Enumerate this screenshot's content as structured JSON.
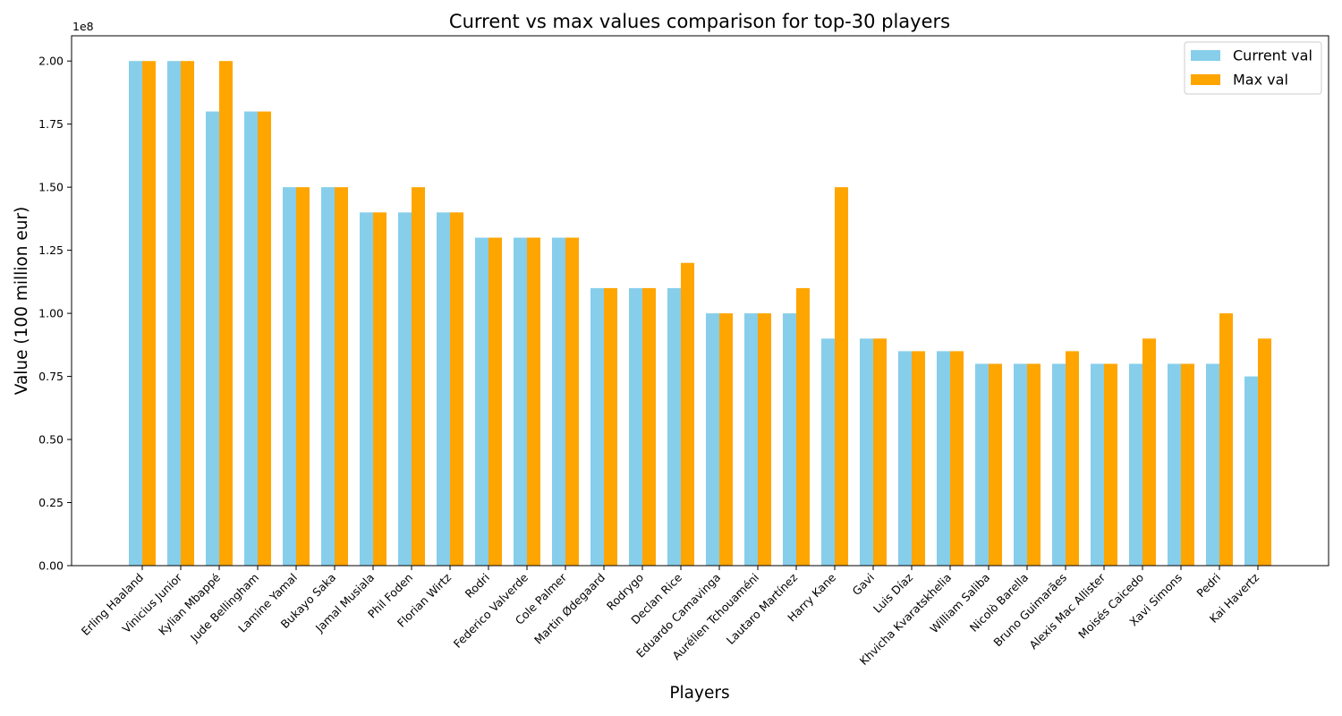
{
  "chart_data": {
    "type": "bar",
    "title": "Current vs max values comparison for top-30 players",
    "xlabel": "Players",
    "ylabel": "Value (100 million eur)",
    "y_offset_label": "1e8",
    "ylim": [
      0,
      210000000
    ],
    "yticks": [
      0,
      25000000,
      50000000,
      75000000,
      100000000,
      125000000,
      150000000,
      175000000,
      200000000
    ],
    "ytick_labels": [
      "0.00",
      "0.25",
      "0.50",
      "0.75",
      "1.00",
      "1.25",
      "1.50",
      "1.75",
      "2.00"
    ],
    "grid": false,
    "legend_position": "top-right",
    "categories": [
      "Erling Haaland",
      "Vinicius Junior",
      "Kylian Mbappé",
      "Jude Bellingham",
      "Lamine Yamal",
      "Bukayo Saka",
      "Jamal Musiala",
      "Phil Foden",
      "Florian Wirtz",
      "Rodri",
      "Federico Valverde",
      "Cole Palmer",
      "Martin Ødegaard",
      "Rodrygo",
      "Declan Rice",
      "Eduardo Camavinga",
      "Aurélien Tchouaméni",
      "Lautaro Martínez",
      "Harry Kane",
      "Gavi",
      "Luis Díaz",
      "Khvicha Kvaratskhelia",
      "William Saliba",
      "Nicolò Barella",
      "Bruno Guimarães",
      "Alexis Mac Allister",
      "Moisés Caicedo",
      "Xavi Simons",
      "Pedri",
      "Kai Havertz"
    ],
    "series": [
      {
        "name": "Current val",
        "color": "#87ceeb",
        "values": [
          200000000,
          200000000,
          180000000,
          180000000,
          150000000,
          150000000,
          140000000,
          140000000,
          140000000,
          130000000,
          130000000,
          130000000,
          110000000,
          110000000,
          110000000,
          100000000,
          100000000,
          100000000,
          90000000,
          90000000,
          85000000,
          85000000,
          80000000,
          80000000,
          80000000,
          80000000,
          80000000,
          80000000,
          80000000,
          75000000
        ]
      },
      {
        "name": "Max val",
        "color": "#ffa500",
        "values": [
          200000000,
          200000000,
          200000000,
          180000000,
          150000000,
          150000000,
          140000000,
          150000000,
          140000000,
          130000000,
          130000000,
          130000000,
          110000000,
          110000000,
          120000000,
          100000000,
          100000000,
          110000000,
          150000000,
          90000000,
          85000000,
          85000000,
          80000000,
          80000000,
          85000000,
          80000000,
          90000000,
          80000000,
          100000000,
          90000000
        ]
      }
    ]
  }
}
